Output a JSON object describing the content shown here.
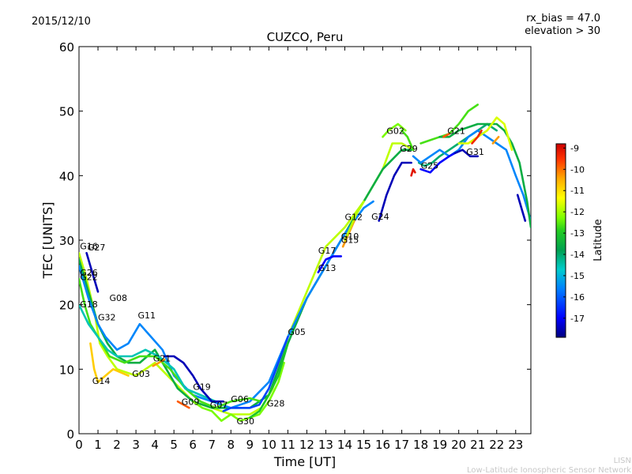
{
  "header": {
    "date": "2015/12/10",
    "rx_bias": "rx_bias = 47.0",
    "elevation": "elevation > 30"
  },
  "credits": {
    "short": "LISN",
    "long": "Low-Latitude Ionospheric Sensor Network"
  },
  "colorbar": {
    "label": "Latitude",
    "ticks": [
      "-9",
      "-10",
      "-11",
      "-12",
      "-13",
      "-14",
      "-15",
      "-16",
      "-17"
    ],
    "range": [
      -17.9,
      -8.8
    ],
    "colors": [
      "#00007f",
      "#0000ff",
      "#007fff",
      "#00cccc",
      "#00a050",
      "#22cc22",
      "#7fff00",
      "#ffff00",
      "#ffaa00",
      "#ff3300",
      "#cc0000"
    ]
  },
  "chart_data": {
    "type": "line",
    "title": "CUZCO, Peru",
    "xlabel": "Time [UT]",
    "ylabel": "TEC [UNITS]",
    "xlim": [
      0,
      23.8
    ],
    "ylim": [
      0,
      60
    ],
    "xticks": [
      "0",
      "1",
      "2",
      "3",
      "4",
      "5",
      "6",
      "7",
      "8",
      "9",
      "10",
      "11",
      "12",
      "13",
      "14",
      "15",
      "16",
      "17",
      "18",
      "19",
      "20",
      "21",
      "22",
      "23"
    ],
    "yticks": [
      "0",
      "10",
      "20",
      "30",
      "40",
      "50",
      "60"
    ],
    "grid": false,
    "series": [
      {
        "lat": -12.0,
        "points": [
          [
            0,
            28
          ],
          [
            0.4,
            24
          ],
          [
            0.8,
            19
          ],
          [
            1.1,
            14
          ],
          [
            1.5,
            12
          ],
          [
            2.0,
            10
          ],
          [
            3.0,
            9
          ],
          [
            4.0,
            11
          ],
          [
            5.0,
            8
          ],
          [
            6.0,
            5
          ],
          [
            7.0,
            4
          ],
          [
            8.0,
            3
          ],
          [
            9.0,
            3
          ],
          [
            9.6,
            4
          ],
          [
            10.2,
            7
          ],
          [
            11.0,
            15
          ],
          [
            12.0,
            22
          ],
          [
            13.0,
            29
          ],
          [
            14.0,
            32
          ],
          [
            15.0,
            36
          ],
          [
            16.0,
            41
          ],
          [
            16.5,
            45
          ],
          [
            17.0,
            45
          ],
          [
            17.6,
            44
          ]
        ]
      },
      {
        "lat": -14.0,
        "points": [
          [
            0,
            27
          ],
          [
            0.5,
            22
          ],
          [
            1.0,
            17
          ],
          [
            1.5,
            14
          ],
          [
            2.0,
            12
          ],
          [
            2.6,
            11
          ],
          [
            3.2,
            11
          ],
          [
            4.0,
            13
          ],
          [
            4.6,
            10
          ],
          [
            5.2,
            7
          ],
          [
            6.0,
            5
          ],
          [
            7.0,
            4
          ],
          [
            8.0,
            4
          ],
          [
            9.0,
            4
          ],
          [
            10.0,
            6
          ],
          [
            11.0,
            14
          ],
          [
            12.0,
            21
          ],
          [
            13.0,
            26
          ],
          [
            14.0,
            31
          ],
          [
            15.0,
            36
          ],
          [
            16.0,
            41
          ],
          [
            17.0,
            44
          ],
          [
            17.5,
            44
          ]
        ]
      },
      {
        "lat": -16.0,
        "points": [
          [
            0,
            26
          ],
          [
            0.5,
            21
          ],
          [
            1.0,
            17
          ],
          [
            1.4,
            15
          ],
          [
            2.0,
            13
          ],
          [
            2.6,
            14
          ],
          [
            3.2,
            17
          ],
          [
            3.8,
            15
          ],
          [
            4.4,
            13
          ],
          [
            5.0,
            9
          ],
          [
            6.0,
            6
          ],
          [
            7.0,
            5
          ],
          [
            8.0,
            4
          ],
          [
            9.0,
            5
          ],
          [
            10.0,
            8
          ],
          [
            11.0,
            15
          ],
          [
            12.0,
            21
          ],
          [
            13.0,
            26
          ],
          [
            14.0,
            31
          ],
          [
            15.0,
            35
          ],
          [
            15.5,
            36
          ]
        ]
      },
      {
        "lat": -13.0,
        "points": [
          [
            0,
            24
          ],
          [
            0.3,
            20
          ],
          [
            0.6,
            17
          ],
          [
            1.0,
            15
          ],
          [
            1.6,
            12
          ],
          [
            2.4,
            11
          ],
          [
            3.2,
            12
          ],
          [
            4.0,
            12
          ],
          [
            4.8,
            10
          ],
          [
            5.6,
            7
          ],
          [
            6.4,
            5
          ],
          [
            7.2,
            4
          ],
          [
            8.0,
            5
          ],
          [
            9.0,
            5.5
          ],
          [
            9.6,
            5
          ]
        ]
      },
      {
        "lat": -15.0,
        "points": [
          [
            0,
            20
          ],
          [
            0.5,
            17
          ],
          [
            1.0,
            15
          ],
          [
            1.5,
            13
          ],
          [
            2.0,
            12
          ],
          [
            2.8,
            12
          ],
          [
            3.5,
            13
          ],
          [
            4.2,
            12
          ],
          [
            5.0,
            10
          ],
          [
            5.6,
            7
          ],
          [
            6.4,
            6
          ],
          [
            7.2,
            5
          ]
        ]
      },
      {
        "lat": -11.0,
        "points": [
          [
            0.6,
            14
          ],
          [
            0.8,
            10
          ],
          [
            1.0,
            8
          ],
          [
            1.4,
            9
          ],
          [
            1.8,
            10
          ],
          [
            2.2,
            9.5
          ],
          [
            2.6,
            9
          ]
        ]
      },
      {
        "lat": -12.5,
        "points": [
          [
            6.0,
            5
          ],
          [
            6.5,
            4
          ],
          [
            7.0,
            3.5
          ],
          [
            7.5,
            2
          ],
          [
            8.0,
            3
          ],
          [
            8.5,
            2
          ],
          [
            9.0,
            2.5
          ],
          [
            9.5,
            3
          ],
          [
            10.0,
            5
          ],
          [
            10.5,
            8
          ],
          [
            10.8,
            11
          ]
        ]
      },
      {
        "lat": -13.5,
        "points": [
          [
            9.0,
            2.5
          ],
          [
            9.5,
            3.5
          ],
          [
            10.0,
            6
          ],
          [
            10.5,
            9
          ],
          [
            11.0,
            14
          ]
        ]
      },
      {
        "lat": -16.5,
        "points": [
          [
            7.6,
            3.5
          ],
          [
            8.0,
            4
          ],
          [
            8.5,
            4
          ],
          [
            9.0,
            4
          ],
          [
            9.5,
            4.5
          ],
          [
            10.0,
            7
          ],
          [
            10.5,
            11
          ],
          [
            11.0,
            15
          ]
        ]
      },
      {
        "lat": -17.5,
        "points": [
          [
            0.4,
            28
          ],
          [
            0.6,
            26
          ],
          [
            0.8,
            24
          ],
          [
            1.0,
            22
          ]
        ]
      },
      {
        "lat": -17.5,
        "points": [
          [
            4.5,
            12
          ],
          [
            5.0,
            12
          ],
          [
            5.5,
            11
          ],
          [
            6.0,
            9
          ],
          [
            6.4,
            7
          ],
          [
            7.0,
            5
          ],
          [
            7.6,
            5
          ]
        ]
      },
      {
        "lat": -10.0,
        "points": [
          [
            5.2,
            5
          ],
          [
            5.5,
            4.5
          ],
          [
            5.8,
            4
          ]
        ]
      },
      {
        "lat": -10.5,
        "points": [
          [
            3.9,
            10.5
          ],
          [
            4.2,
            11
          ],
          [
            4.5,
            11.5
          ]
        ]
      },
      {
        "lat": -17.0,
        "points": [
          [
            12.6,
            25
          ],
          [
            13.0,
            27
          ],
          [
            13.4,
            27.5
          ],
          [
            13.8,
            27.5
          ]
        ]
      },
      {
        "lat": -17.5,
        "points": [
          [
            15.8,
            33
          ],
          [
            16.2,
            37
          ],
          [
            16.6,
            40
          ],
          [
            17.0,
            42
          ],
          [
            17.5,
            42
          ]
        ]
      },
      {
        "lat": -10.5,
        "points": [
          [
            13.9,
            29
          ],
          [
            14.2,
            31
          ],
          [
            14.5,
            33
          ]
        ]
      },
      {
        "lat": -12.0,
        "points": [
          [
            14.0,
            30
          ],
          [
            14.3,
            32
          ],
          [
            14.6,
            34
          ],
          [
            15.0,
            36
          ]
        ]
      },
      {
        "lat": -12.5,
        "points": [
          [
            16.0,
            46
          ],
          [
            16.3,
            47
          ],
          [
            16.8,
            48
          ],
          [
            17.2,
            47
          ]
        ]
      },
      {
        "lat": -13.0,
        "points": [
          [
            17.0,
            47
          ],
          [
            17.3,
            46
          ],
          [
            17.6,
            44
          ]
        ]
      },
      {
        "lat": -14.5,
        "points": [
          [
            17.9,
            42
          ],
          [
            18.2,
            41.5
          ],
          [
            18.6,
            42
          ],
          [
            19.0,
            43
          ],
          [
            19.5,
            44
          ],
          [
            20.0,
            45
          ],
          [
            20.5,
            46
          ],
          [
            21.0,
            47
          ],
          [
            21.5,
            48
          ],
          [
            22.0,
            47
          ]
        ]
      },
      {
        "lat": -16.0,
        "points": [
          [
            17.6,
            43
          ],
          [
            18.0,
            42
          ],
          [
            18.5,
            43
          ],
          [
            19.0,
            44
          ],
          [
            19.5,
            43
          ],
          [
            20.0,
            44
          ],
          [
            20.5,
            46
          ],
          [
            21.0,
            47
          ],
          [
            21.5,
            46
          ],
          [
            22.0,
            45
          ],
          [
            22.5,
            44
          ],
          [
            23.0,
            40
          ],
          [
            23.4,
            37
          ],
          [
            23.8,
            33
          ]
        ]
      },
      {
        "lat": -17.0,
        "points": [
          [
            18.0,
            41
          ],
          [
            18.5,
            40.5
          ],
          [
            19.0,
            42
          ],
          [
            19.5,
            43
          ],
          [
            19.8,
            43.5
          ]
        ]
      },
      {
        "lat": -17.5,
        "points": [
          [
            19.8,
            43.5
          ],
          [
            20.2,
            44
          ],
          [
            20.6,
            43
          ],
          [
            21.0,
            43
          ]
        ]
      },
      {
        "lat": -13.0,
        "points": [
          [
            18.0,
            45
          ],
          [
            18.5,
            45.5
          ],
          [
            19.0,
            46
          ],
          [
            19.5,
            46.5
          ],
          [
            20.0,
            48
          ],
          [
            20.5,
            50
          ],
          [
            21.0,
            51
          ]
        ]
      },
      {
        "lat": -14.0,
        "points": [
          [
            19.0,
            46
          ],
          [
            19.5,
            46
          ],
          [
            20.0,
            47
          ],
          [
            21.0,
            48
          ],
          [
            21.5,
            48
          ],
          [
            22.0,
            48
          ],
          [
            22.4,
            47
          ],
          [
            22.8,
            45
          ],
          [
            23.2,
            42
          ],
          [
            23.6,
            36
          ],
          [
            23.8,
            32
          ]
        ]
      },
      {
        "lat": -11.8,
        "points": [
          [
            20.0,
            45
          ],
          [
            20.5,
            45
          ],
          [
            21.0,
            46
          ],
          [
            21.5,
            47
          ],
          [
            22.0,
            49
          ],
          [
            22.4,
            48
          ],
          [
            22.8,
            44
          ]
        ]
      },
      {
        "lat": -10.0,
        "points": [
          [
            19.2,
            46
          ],
          [
            19.5,
            46.5
          ]
        ]
      },
      {
        "lat": -9.5,
        "points": [
          [
            20.7,
            45
          ],
          [
            21.0,
            46
          ],
          [
            21.2,
            47
          ]
        ]
      },
      {
        "lat": -10.5,
        "points": [
          [
            21.8,
            45
          ],
          [
            22.1,
            46
          ]
        ]
      },
      {
        "lat": -9.2,
        "points": [
          [
            17.5,
            40
          ],
          [
            17.6,
            41
          ],
          [
            17.7,
            40.5
          ]
        ]
      },
      {
        "lat": -17.5,
        "points": [
          [
            23.1,
            37
          ],
          [
            23.3,
            35
          ],
          [
            23.5,
            33
          ]
        ]
      }
    ],
    "labels": [
      {
        "text": "G16",
        "x": 0.05,
        "y": 28.6
      },
      {
        "text": "G27",
        "x": 0.45,
        "y": 28.4
      },
      {
        "text": "G26",
        "x": 0.05,
        "y": 24.5
      },
      {
        "text": "G22",
        "x": 0.05,
        "y": 23.8
      },
      {
        "text": "G18",
        "x": 0.05,
        "y": 19.6
      },
      {
        "text": "G08",
        "x": 1.6,
        "y": 20.6
      },
      {
        "text": "G32",
        "x": 1.0,
        "y": 17.6
      },
      {
        "text": "G11",
        "x": 3.1,
        "y": 17.9
      },
      {
        "text": "G03",
        "x": 2.8,
        "y": 8.8
      },
      {
        "text": "G21",
        "x": 3.9,
        "y": 11.2
      },
      {
        "text": "G14",
        "x": 0.7,
        "y": 7.7
      },
      {
        "text": "G19",
        "x": 6.0,
        "y": 6.8
      },
      {
        "text": "G09",
        "x": 5.4,
        "y": 4.5
      },
      {
        "text": "G07",
        "x": 6.9,
        "y": 4.0
      },
      {
        "text": "G06",
        "x": 8.0,
        "y": 4.9
      },
      {
        "text": "G28",
        "x": 9.9,
        "y": 4.2
      },
      {
        "text": "G30",
        "x": 8.3,
        "y": 1.5
      },
      {
        "text": "G05",
        "x": 11.0,
        "y": 15.3
      },
      {
        "text": "G13",
        "x": 12.6,
        "y": 25.2
      },
      {
        "text": "G17",
        "x": 12.6,
        "y": 27.9
      },
      {
        "text": "G10",
        "x": 13.8,
        "y": 30.1
      },
      {
        "text": "G15",
        "x": 13.8,
        "y": 29.6
      },
      {
        "text": "G12",
        "x": 14.0,
        "y": 33.1
      },
      {
        "text": "G24",
        "x": 15.4,
        "y": 33.2
      },
      {
        "text": "G02",
        "x": 16.2,
        "y": 46.5
      },
      {
        "text": "G29",
        "x": 16.9,
        "y": 43.7
      },
      {
        "text": "G25",
        "x": 18.0,
        "y": 41.1
      },
      {
        "text": "G21",
        "x": 19.4,
        "y": 46.5
      },
      {
        "text": "G31",
        "x": 20.4,
        "y": 43.2
      }
    ]
  }
}
